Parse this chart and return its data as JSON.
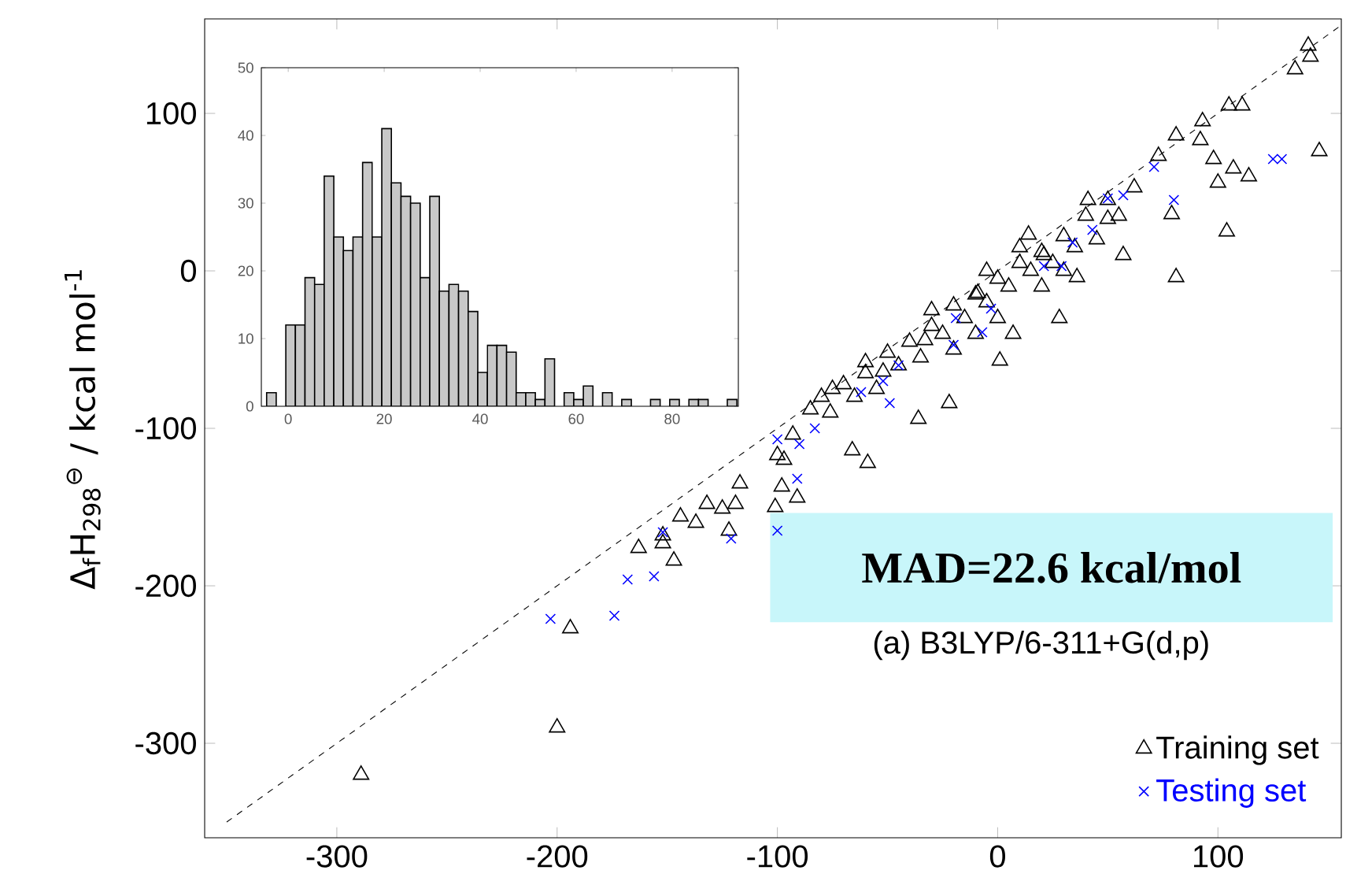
{
  "chart_data": [
    {
      "type": "scatter",
      "ylabel": "Δ$_{f}$H$_{298}$$^{⊖}$ / kcal mol$^{-1}$",
      "xlim": [
        -360,
        156
      ],
      "ylim": [
        -360,
        160
      ],
      "xticks": [
        -300,
        -200,
        -100,
        0,
        100
      ],
      "yticks": [
        -300,
        -200,
        -100,
        0,
        100
      ],
      "legend": "bottom right",
      "annotations": [
        "MAD=22.6 kcal/mol",
        "(a) B3LYP/6-311+G(d,p)"
      ],
      "series": [
        {
          "type": "line",
          "color": "#000000",
          "line_style": "dashed",
          "marker": "none",
          "x": [
            -350,
            156
          ],
          "values": [
            -350,
            156
          ]
        },
        {
          "name": "Training set",
          "type": "scatter",
          "color": "#000000",
          "marker": "triangle",
          "x": [
            -289,
            -200,
            -194,
            -163,
            -152,
            -147,
            -152,
            -144,
            -137,
            -132,
            -125,
            -119,
            -122,
            -117,
            -101,
            -98,
            -100,
            -91,
            141,
            142,
            135,
            105,
            111,
            93,
            81,
            92,
            98,
            146,
            107,
            114,
            100,
            104,
            81,
            28,
            1,
            -22,
            -59,
            -66,
            73,
            41,
            79,
            57,
            36,
            7,
            -36,
            -76,
            -93,
            -97,
            62,
            50,
            21,
            -9,
            -33,
            -52,
            14,
            -80,
            -70,
            -60,
            -50,
            -40,
            -30,
            -20,
            -10,
            0,
            10,
            20,
            30,
            40,
            50,
            -45,
            -35,
            -25,
            -15,
            -5,
            5,
            15,
            25,
            35,
            -55,
            -65,
            -20,
            0,
            -10,
            20,
            30,
            45,
            55,
            -5,
            10,
            -30,
            -60,
            -75,
            -85
          ],
          "values": [
            -320,
            -290,
            -227,
            -176,
            -173,
            -184,
            -168,
            -156,
            -160,
            -148,
            -151,
            -148,
            -165,
            -135,
            -150,
            -137,
            -117,
            -144,
            143,
            136,
            128,
            105,
            105,
            95,
            86,
            83,
            71,
            76,
            65,
            60,
            56,
            25,
            -4,
            -30,
            -57,
            -84,
            -122,
            -114,
            73,
            45,
            36,
            10,
            -4,
            -40,
            -94,
            -90,
            -104,
            -120,
            53,
            33,
            10,
            -14,
            -44,
            -64,
            23,
            -80,
            -72,
            -65,
            -52,
            -45,
            -35,
            -22,
            -15,
            -5,
            5,
            12,
            22,
            35,
            45,
            -60,
            -55,
            -40,
            -30,
            -20,
            -10,
            0,
            5,
            15,
            -75,
            -80,
            -50,
            -30,
            -40,
            -10,
            0,
            20,
            35,
            0,
            15,
            -25,
            -58,
            -75,
            -88
          ]
        },
        {
          "name": "Testing set",
          "type": "scatter",
          "color": "#0000ff",
          "marker": "cross",
          "x": [
            -203,
            -174,
            -168,
            -156,
            -152,
            -121,
            -91,
            -100,
            -100,
            125,
            129,
            71,
            80,
            57,
            50,
            43,
            34,
            29,
            21,
            -3,
            -7,
            -19,
            -20,
            -45,
            -52,
            -62,
            -49,
            -83,
            -90
          ],
          "values": [
            -221,
            -219,
            -196,
            -194,
            -166,
            -170,
            -132,
            -165,
            -107,
            71,
            71,
            66,
            45,
            48,
            46,
            26,
            18,
            3,
            3,
            -24,
            -39,
            -30,
            -47,
            -60,
            -70,
            -77,
            -84,
            -100,
            -110
          ]
        }
      ]
    },
    {
      "type": "histogram",
      "color": "#c8c8c8",
      "xlim": [
        -5.6,
        93.8
      ],
      "ylim": [
        0,
        50
      ],
      "xticks": [
        0,
        20,
        40,
        60,
        80
      ],
      "yticks": [
        0,
        10,
        20,
        30,
        40,
        50
      ],
      "bins": [
        -4.5,
        -2.5,
        -0.5,
        1.5,
        3.5,
        5.5,
        7.5,
        9.5,
        11.5,
        13.5,
        15.5,
        17.5,
        19.5,
        21.5,
        23.5,
        25.5,
        27.5,
        29.5,
        31.5,
        33.5,
        35.5,
        37.5,
        39.5,
        41.5,
        43.5,
        45.5,
        47.5,
        49.5,
        51.5,
        53.5,
        55.5,
        57.5,
        59.5,
        61.5,
        63.5,
        65.5,
        67.5,
        69.5,
        71.5,
        73.5,
        75.5,
        77.5,
        79.5,
        81.5,
        83.5,
        85.5,
        87.5,
        89.5,
        91.5,
        93.5
      ],
      "values": [
        2,
        0,
        12,
        12,
        19,
        18,
        34,
        25,
        23,
        25,
        36,
        25,
        41,
        33,
        31,
        30,
        19,
        31,
        17,
        18,
        17,
        14,
        5,
        9,
        9,
        8,
        2,
        2,
        1,
        7,
        0,
        2,
        1,
        3,
        0,
        2,
        0,
        1,
        0,
        0,
        1,
        0,
        1,
        0,
        1,
        1,
        0,
        0,
        1
      ]
    }
  ]
}
